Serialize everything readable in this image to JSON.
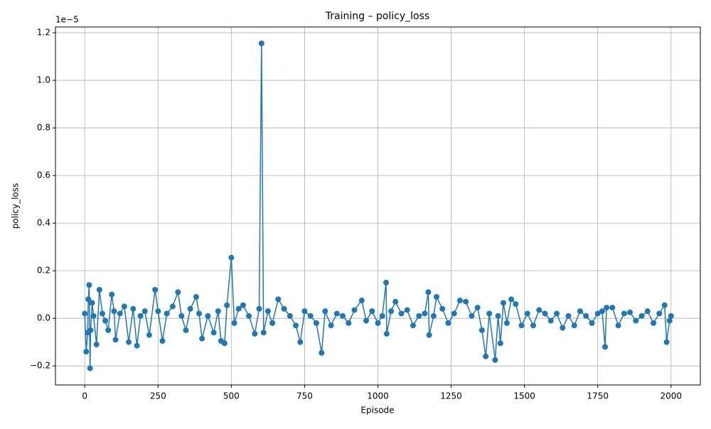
{
  "chart_data": {
    "type": "line",
    "title": "Training – policy_loss",
    "x_label": "Episode",
    "y_label": "policy_loss",
    "y_offset_text": "1e−5",
    "color": "#1f77b4",
    "grid": true,
    "x": [
      0,
      5,
      10,
      12,
      15,
      18,
      20,
      25,
      30,
      40,
      50,
      60,
      70,
      80,
      92,
      100,
      105,
      120,
      135,
      150,
      165,
      178,
      190,
      205,
      220,
      240,
      250,
      265,
      280,
      300,
      318,
      330,
      345,
      360,
      380,
      390,
      400,
      420,
      440,
      455,
      465,
      477,
      485,
      500,
      510,
      525,
      540,
      560,
      580,
      595,
      603,
      610,
      625,
      640,
      660,
      680,
      700,
      720,
      735,
      750,
      770,
      790,
      808,
      820,
      840,
      860,
      880,
      900,
      920,
      945,
      960,
      980,
      1000,
      1015,
      1028,
      1030,
      1045,
      1060,
      1080,
      1100,
      1120,
      1140,
      1160,
      1172,
      1175,
      1190,
      1200,
      1220,
      1240,
      1260,
      1280,
      1300,
      1320,
      1340,
      1355,
      1368,
      1380,
      1400,
      1410,
      1418,
      1428,
      1440,
      1455,
      1470,
      1490,
      1510,
      1530,
      1550,
      1570,
      1590,
      1610,
      1630,
      1650,
      1670,
      1690,
      1710,
      1730,
      1750,
      1765,
      1775,
      1780,
      1800,
      1820,
      1840,
      1860,
      1880,
      1900,
      1920,
      1940,
      1960,
      1978,
      1985,
      1995,
      2000
    ],
    "values": [
      0.02,
      -0.14,
      -0.06,
      0.08,
      0.14,
      -0.21,
      -0.05,
      0.065,
      0.01,
      -0.11,
      0.12,
      0.02,
      -0.01,
      -0.05,
      0.1,
      0.03,
      -0.09,
      0.02,
      0.05,
      -0.1,
      0.04,
      -0.115,
      0.01,
      0.03,
      -0.07,
      0.12,
      0.03,
      -0.095,
      0.02,
      0.05,
      0.11,
      0.01,
      -0.05,
      0.04,
      0.09,
      0.02,
      -0.085,
      0.01,
      -0.06,
      0.03,
      -0.095,
      -0.105,
      0.055,
      0.255,
      -0.02,
      0.04,
      0.055,
      0.01,
      -0.065,
      0.04,
      1.155,
      -0.06,
      0.03,
      -0.02,
      0.08,
      0.04,
      0.01,
      -0.03,
      -0.1,
      0.03,
      0.01,
      -0.02,
      -0.145,
      0.03,
      -0.03,
      0.02,
      0.01,
      -0.02,
      0.035,
      0.075,
      -0.01,
      0.03,
      -0.02,
      0.01,
      0.15,
      -0.065,
      0.03,
      0.07,
      0.02,
      0.035,
      -0.03,
      0.01,
      0.02,
      0.11,
      -0.07,
      0.01,
      0.09,
      0.04,
      -0.02,
      0.02,
      0.075,
      0.07,
      0.01,
      0.045,
      -0.05,
      -0.16,
      0.02,
      -0.175,
      0.01,
      -0.105,
      0.065,
      -0.02,
      0.08,
      0.06,
      -0.03,
      0.02,
      -0.03,
      0.035,
      0.02,
      -0.01,
      0.02,
      -0.04,
      0.01,
      -0.03,
      0.03,
      0.01,
      -0.02,
      0.02,
      0.03,
      -0.12,
      0.045,
      0.045,
      -0.03,
      0.02,
      0.025,
      -0.01,
      0.01,
      0.03,
      -0.02,
      0.02,
      0.055,
      -0.1,
      -0.01,
      0.01
    ],
    "xlim": [
      -100,
      2100
    ],
    "xticks": [
      0,
      250,
      500,
      750,
      1000,
      1250,
      1500,
      1750,
      2000
    ],
    "ylim": [
      -0.28,
      1.224
    ],
    "yticks": [
      {
        "value": -0.2,
        "label": "−0.2"
      },
      {
        "value": 0,
        "label": "0.0"
      },
      0.2,
      0.4,
      0.6,
      0.8,
      {
        "value": 1,
        "label": "1.0"
      },
      1.2
    ]
  }
}
